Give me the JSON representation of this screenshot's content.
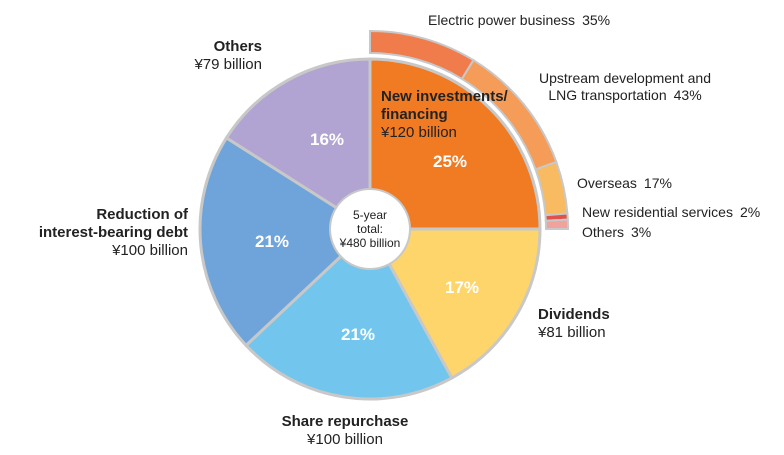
{
  "chart_data": {
    "type": "pie",
    "center_label": [
      "5-year",
      "total:",
      "¥480 billion"
    ],
    "categories": [
      "New investments/\nfinancing",
      "Dividends",
      "Share repurchase",
      "Reduction of\ninterest-bearing debt",
      "Others"
    ],
    "values": [
      25,
      17,
      21,
      21,
      16
    ],
    "value_labels": [
      "25%",
      "17%",
      "21%",
      "21%",
      "16%"
    ],
    "amount_labels": [
      "¥120 billion",
      "¥81 billion",
      "¥100 billion",
      "¥100 billion",
      "¥79 billion"
    ],
    "colors": [
      "#f07b22",
      "#fdd56b",
      "#72c6ee",
      "#6ea4da",
      "#b1a4d2"
    ],
    "breakdown": {
      "categories": [
        "Electric power business",
        "Upstream development and\nLNG transportation",
        "Overseas",
        "New residential services",
        "Others"
      ],
      "values": [
        35,
        43,
        17,
        2,
        3
      ],
      "value_labels": [
        "35%",
        "43%",
        "17%",
        "2%",
        "3%"
      ],
      "colors": [
        "#f07c4c",
        "#f49c58",
        "#f9bb62",
        "#e2504a",
        "#f0a29c"
      ]
    }
  }
}
